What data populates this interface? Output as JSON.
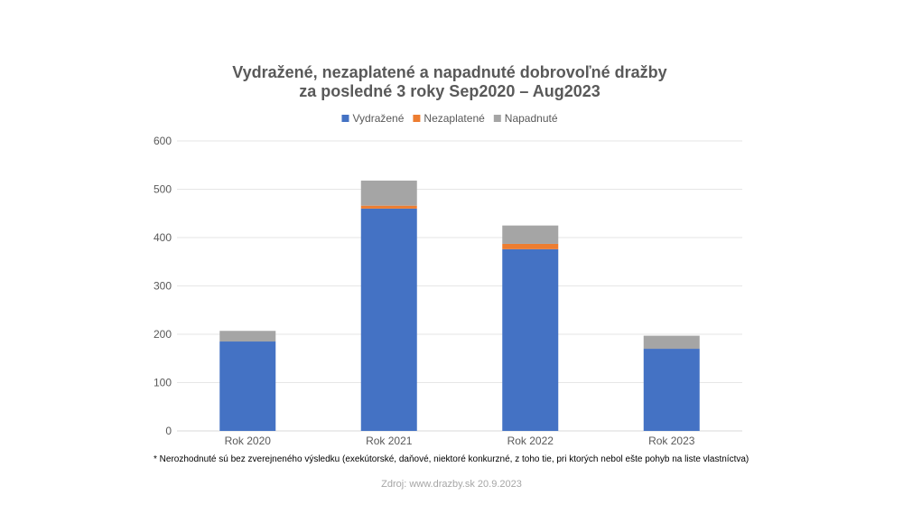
{
  "chart_data": {
    "type": "bar",
    "stacked": true,
    "title": [
      "Vydražené, nezaplatené a napadnuté dobrovoľné dražby",
      "za posledné 3 roky Sep2020 – Aug2023"
    ],
    "categories": [
      "Rok 2020",
      "Rok 2021",
      "Rok 2022",
      "Rok 2023"
    ],
    "series": [
      {
        "name": "Vydražené",
        "color": "#4472C4",
        "values": [
          185,
          460,
          376,
          170
        ]
      },
      {
        "name": "Nezaplatené",
        "color": "#ED7D31",
        "values": [
          0,
          6,
          11,
          0
        ]
      },
      {
        "name": "Napadnuté",
        "color": "#A5A5A5",
        "values": [
          22,
          52,
          38,
          27
        ]
      }
    ],
    "ylim": [
      0,
      600
    ],
    "yticks": [
      0,
      100,
      200,
      300,
      400,
      500,
      600
    ],
    "grid": true,
    "legend_position": "top"
  },
  "footnote": "* Nerozhodnuté sú bez zverejneného výsledku (exekútorské, daňové, niektoré konkurzné, z toho tie, pri ktorých nebol ešte pohyb na liste vlastníctva)",
  "source": "Zdroj: www.drazby.sk 20.9.2023"
}
